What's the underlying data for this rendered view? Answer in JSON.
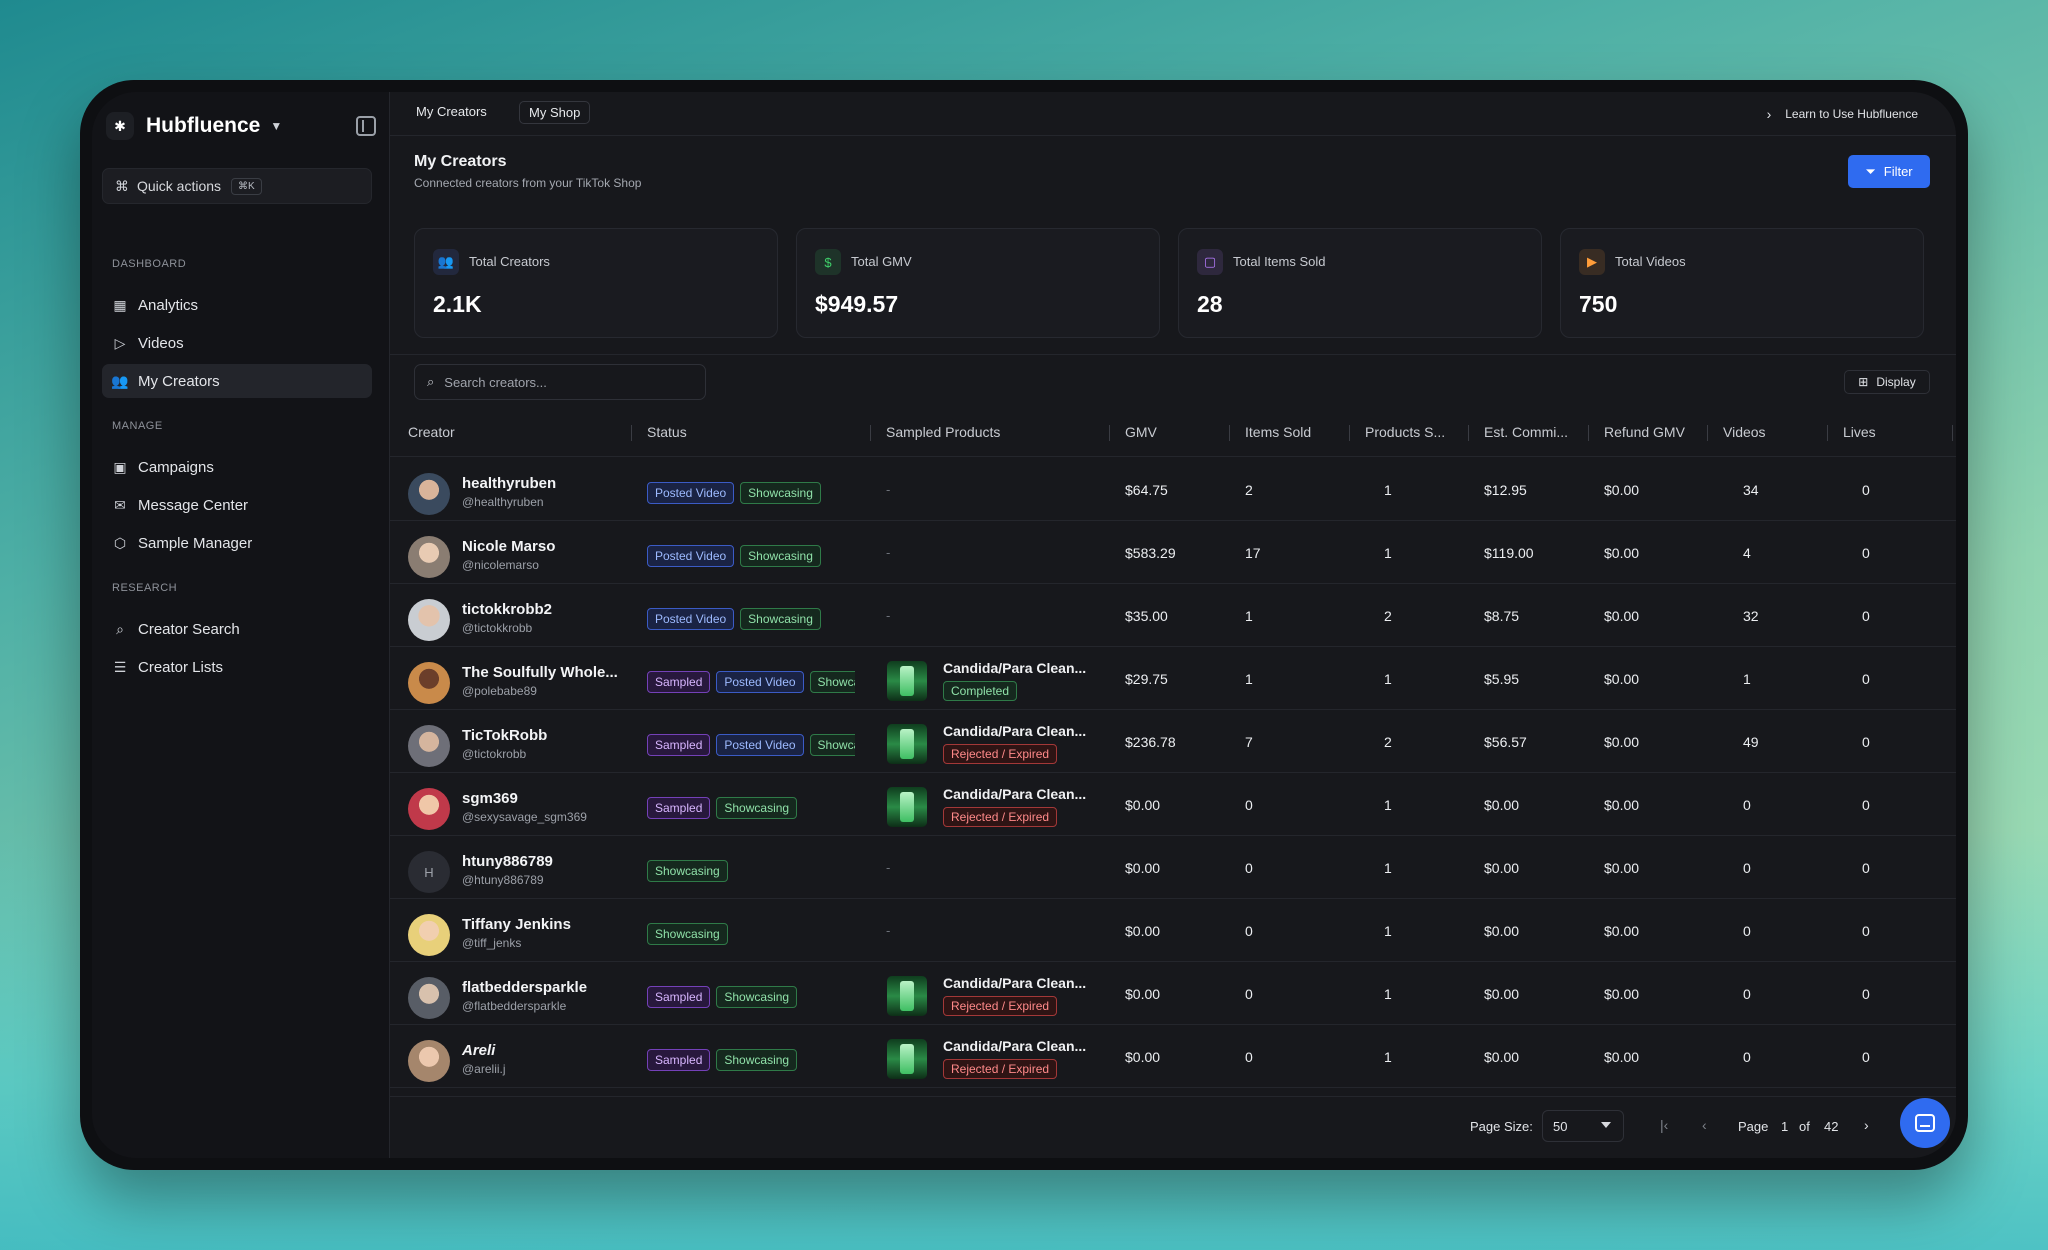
{
  "sidebar": {
    "brand": "Hubfluence",
    "quick_actions": "Quick actions",
    "quick_kbd": "⌘K",
    "sections": [
      {
        "title": "DASHBOARD",
        "items": [
          {
            "label": "Analytics",
            "icon": "grid-icon"
          },
          {
            "label": "Videos",
            "icon": "play-icon"
          },
          {
            "label": "My Creators",
            "icon": "users-icon",
            "active": true
          }
        ]
      },
      {
        "title": "MANAGE",
        "items": [
          {
            "label": "Campaigns",
            "icon": "briefcase-icon"
          },
          {
            "label": "Message Center",
            "icon": "mail-icon"
          },
          {
            "label": "Sample Manager",
            "icon": "box-icon"
          }
        ]
      },
      {
        "title": "RESEARCH",
        "items": [
          {
            "label": "Creator Search",
            "icon": "search-icon"
          },
          {
            "label": "Creator Lists",
            "icon": "list-icon"
          }
        ]
      }
    ]
  },
  "topbar": {
    "crumb1": "My Creators",
    "crumb2": "My Shop",
    "learn": "Learn to Use Hubfluence"
  },
  "header": {
    "title": "My Creators",
    "subtitle": "Connected creators from your TikTok Shop",
    "filter": "Filter"
  },
  "stats": [
    {
      "label": "Total Creators",
      "value": "2.1K",
      "icon": "users-icon",
      "color": "#5b7cff"
    },
    {
      "label": "Total GMV",
      "value": "$949.57",
      "icon": "dollar-icon",
      "color": "#3fcf6a"
    },
    {
      "label": "Total Items Sold",
      "value": "28",
      "icon": "bag-icon",
      "color": "#b77cff"
    },
    {
      "label": "Total Videos",
      "value": "750",
      "icon": "video-icon",
      "color": "#ff9d3a"
    }
  ],
  "search": {
    "placeholder": "Search creators..."
  },
  "display_label": "Display",
  "columns": [
    "Creator",
    "Status",
    "Sampled Products",
    "GMV",
    "Items Sold",
    "Products S...",
    "Est. Commi...",
    "Refund GMV",
    "Videos",
    "Lives"
  ],
  "rows": [
    {
      "name": "healthyruben",
      "handle": "@healthyruben",
      "tags": [
        "Posted Video",
        "Showcasing"
      ],
      "product": null,
      "product_status": null,
      "gmv": "$64.75",
      "items": "2",
      "products": "1",
      "comm": "$12.95",
      "refund": "$0.00",
      "videos": "34",
      "lives": "0"
    },
    {
      "name": "Nicole Marso",
      "handle": "@nicolemarso",
      "tags": [
        "Posted Video",
        "Showcasing"
      ],
      "product": null,
      "product_status": null,
      "gmv": "$583.29",
      "items": "17",
      "products": "1",
      "comm": "$119.00",
      "refund": "$0.00",
      "videos": "4",
      "lives": "0"
    },
    {
      "name": "tictokkrobb2",
      "handle": "@tictokkrobb",
      "tags": [
        "Posted Video",
        "Showcasing"
      ],
      "product": null,
      "product_status": null,
      "gmv": "$35.00",
      "items": "1",
      "products": "2",
      "comm": "$8.75",
      "refund": "$0.00",
      "videos": "32",
      "lives": "0"
    },
    {
      "name": "The Soulfully Whole...",
      "handle": "@polebabe89",
      "tags": [
        "Sampled",
        "Posted Video",
        "Showcasing"
      ],
      "product": "Candida/Para Clean...",
      "product_status": "Completed",
      "gmv": "$29.75",
      "items": "1",
      "products": "1",
      "comm": "$5.95",
      "refund": "$0.00",
      "videos": "1",
      "lives": "0"
    },
    {
      "name": "TicTokRobb",
      "handle": "@tictokrobb",
      "tags": [
        "Sampled",
        "Posted Video",
        "Showcasing"
      ],
      "product": "Candida/Para Clean...",
      "product_status": "Rejected / Expired",
      "gmv": "$236.78",
      "items": "7",
      "products": "2",
      "comm": "$56.57",
      "refund": "$0.00",
      "videos": "49",
      "lives": "0"
    },
    {
      "name": "sgm369",
      "handle": "@sexysavage_sgm369",
      "tags": [
        "Sampled",
        "Showcasing"
      ],
      "product": "Candida/Para Clean...",
      "product_status": "Rejected / Expired",
      "gmv": "$0.00",
      "items": "0",
      "products": "1",
      "comm": "$0.00",
      "refund": "$0.00",
      "videos": "0",
      "lives": "0"
    },
    {
      "name": "htuny886789",
      "handle": "@htuny886789",
      "avatar_letter": "H",
      "tags": [
        "Showcasing"
      ],
      "product": null,
      "product_status": null,
      "gmv": "$0.00",
      "items": "0",
      "products": "1",
      "comm": "$0.00",
      "refund": "$0.00",
      "videos": "0",
      "lives": "0"
    },
    {
      "name": "Tiffany Jenkins",
      "handle": "@tiff_jenks",
      "tags": [
        "Showcasing"
      ],
      "product": null,
      "product_status": null,
      "gmv": "$0.00",
      "items": "0",
      "products": "1",
      "comm": "$0.00",
      "refund": "$0.00",
      "videos": "0",
      "lives": "0"
    },
    {
      "name": "flatbeddersparkle",
      "handle": "@flatbeddersparkle",
      "tags": [
        "Sampled",
        "Showcasing"
      ],
      "product": "Candida/Para Clean...",
      "product_status": "Rejected / Expired",
      "gmv": "$0.00",
      "items": "0",
      "products": "1",
      "comm": "$0.00",
      "refund": "$0.00",
      "videos": "0",
      "lives": "0"
    },
    {
      "name": "Areli",
      "handle": "@arelii.j",
      "tags": [
        "Sampled",
        "Showcasing"
      ],
      "product": "Candida/Para Clean...",
      "product_status": "Rejected / Expired",
      "gmv": "$0.00",
      "items": "0",
      "products": "1",
      "comm": "$0.00",
      "refund": "$0.00",
      "videos": "0",
      "lives": "0"
    }
  ],
  "product_dash": "-",
  "pager": {
    "page_size_label": "Page Size:",
    "page_size": "50",
    "page_label": "Page",
    "page": "1",
    "of_label": "of",
    "total": "42"
  }
}
